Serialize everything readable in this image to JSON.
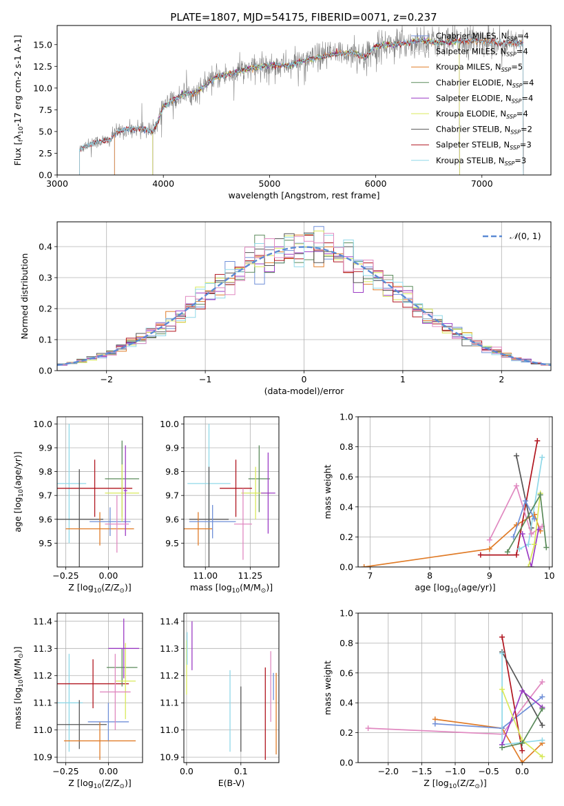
{
  "figure": {
    "title": "PLATE=1807, MJD=54175, FIBERID=0071, z=0.237"
  },
  "colors": {
    "Chabrier MILES": "#6f8fd8",
    "Salpeter MILES": "#d8d8d8",
    "Kroupa MILES": "#e07b27",
    "Chabrier ELODIE": "#5a8a5a",
    "Salpeter ELODIE": "#9b3bc4",
    "Kroupa ELODIE": "#d8e85a",
    "Chabrier STELIB": "#555555",
    "Salpeter STELIB": "#b0141e",
    "Kroupa STELIB": "#8fd8e8",
    "extra_pink": "#e088c0",
    "gaussian": "#5b8ad4",
    "data": "#808080"
  },
  "chart_data": [
    {
      "id": "spectrum",
      "type": "line",
      "title": "PLATE=1807, MJD=54175, FIBERID=0071, z=0.237",
      "xlabel": "wavelength [Angstrom, rest frame]",
      "ylabel_parts": [
        "Flux [",
        "f",
        "λ",
        "10",
        "-17",
        " erg cm",
        "-2",
        " s",
        "-1",
        " A",
        "-1",
        "]"
      ],
      "xlim": [
        3000,
        7650
      ],
      "ylim": [
        0,
        17.2
      ],
      "xticks": [
        3000,
        4000,
        5000,
        6000,
        7000
      ],
      "yticks": [
        0.0,
        2.5,
        5.0,
        7.5,
        10.0,
        12.5,
        15.0
      ],
      "ytick_labels": [
        "0.0",
        "2.5",
        "5.0",
        "7.5",
        "10.0",
        "12.5",
        "15.0"
      ],
      "continuum": {
        "x": [
          3210,
          3250,
          3400,
          3500,
          3540,
          3600,
          3700,
          3800,
          3900,
          3950,
          4000,
          4100,
          4200,
          4300,
          4400,
          4500,
          4600,
          4700,
          4800,
          4900,
          5000,
          5100,
          5200,
          5300,
          5400,
          5500,
          5600,
          5700,
          5800,
          5900,
          6000,
          6100,
          6200,
          6300,
          6400,
          6500,
          6600,
          6700,
          6800,
          6900,
          7000,
          7100,
          7200,
          7300,
          7390
        ],
        "y": [
          2.8,
          3.3,
          3.9,
          4.0,
          4.8,
          5.1,
          5.3,
          5.4,
          5.0,
          6.2,
          7.9,
          8.6,
          9.4,
          9.4,
          10.4,
          11.3,
          11.5,
          11.9,
          12.2,
          12.4,
          12.6,
          12.6,
          12.6,
          13.1,
          13.3,
          13.6,
          13.9,
          14.0,
          14.1,
          13.5,
          14.8,
          15.0,
          15.1,
          15.2,
          15.5,
          15.4,
          15.2,
          15.3,
          15.4,
          15.5,
          15.4,
          15.3,
          15.1,
          15.2,
          15.0
        ]
      },
      "legend": [
        {
          "name": "Chabrier MILES",
          "n": "4"
        },
        {
          "name": "Salpeter MILES",
          "n": "4"
        },
        {
          "name": "Kroupa MILES",
          "n": "5"
        },
        {
          "name": "Chabrier ELODIE",
          "n": "4"
        },
        {
          "name": "Salpeter ELODIE",
          "n": "4"
        },
        {
          "name": "Kroupa ELODIE",
          "n": "4"
        },
        {
          "name": "Chabrier STELIB",
          "n": "2"
        },
        {
          "name": "Salpeter STELIB",
          "n": "3"
        },
        {
          "name": "Kroupa STELIB",
          "n": "3"
        }
      ],
      "legend_label_nssp": ", N",
      "legend_sub": "SSP",
      "legend_eq": "=",
      "model_start": {
        "Chabrier MILES": 3540,
        "Salpeter MILES": 3540,
        "Kroupa MILES": 3540,
        "Chabrier ELODIE": 3900,
        "Salpeter ELODIE": 3900,
        "Kroupa ELODIE": 3900,
        "Chabrier STELIB": 3210,
        "Salpeter STELIB": 3210,
        "Kroupa STELIB": 3210
      },
      "model_end": {
        "Chabrier MILES": 7390,
        "Salpeter MILES": 7390,
        "Kroupa MILES": 7390,
        "Chabrier ELODIE": 6790,
        "Salpeter ELODIE": 6790,
        "Kroupa ELODIE": 6790,
        "Chabrier STELIB": 7390,
        "Salpeter STELIB": 7390,
        "Kroupa STELIB": 7390
      }
    },
    {
      "id": "residuals",
      "type": "bar",
      "xlabel": "(data-model)/error",
      "ylabel": "Normed distribution",
      "xlim": [
        -2.5,
        2.5
      ],
      "ylim": [
        0,
        0.48
      ],
      "xticks": [
        -2,
        -1,
        0,
        1,
        2
      ],
      "xtick_labels": [
        "−2",
        "−1",
        "0",
        "1",
        "2"
      ],
      "yticks": [
        0.0,
        0.1,
        0.2,
        0.3,
        0.4
      ],
      "ytick_labels": [
        "0.0",
        "0.1",
        "0.2",
        "0.3",
        "0.4"
      ],
      "bin_width": 0.1,
      "series_count": 9,
      "grid": true,
      "legend": {
        "label_prefix": "𝒩",
        "label_args": "(0, 1)",
        "placement": "top-right"
      }
    },
    {
      "id": "age_vs_Z",
      "type": "scatter",
      "xlabel_parts": [
        "Z [log",
        "10",
        "(Z/Z",
        "⊙",
        ")]"
      ],
      "ylabel_parts": [
        "age  [log",
        "10",
        "(age/yr)]"
      ],
      "xlim": [
        -0.3,
        0.2
      ],
      "ylim": [
        9.4,
        10.03
      ],
      "xticks": [
        -0.25,
        0.0
      ],
      "xtick_labels": [
        "−0.25",
        "0.00"
      ],
      "yticks": [
        9.5,
        9.6,
        9.7,
        9.8,
        9.9,
        10.0
      ],
      "ytick_labels": [
        "9.5",
        "9.6",
        "9.7",
        "9.8",
        "9.9",
        "10.0"
      ],
      "points": [
        {
          "series": "Kroupa STELIB",
          "x": -0.23,
          "y": 9.75,
          "xerr": 0.1,
          "yerr": 0.25
        },
        {
          "series": "Salpeter STELIB",
          "x": -0.08,
          "y": 9.73,
          "xerr": 0.22,
          "yerr": 0.12
        },
        {
          "series": "Chabrier STELIB",
          "x": -0.17,
          "y": 9.6,
          "xerr": 0.14,
          "yerr": 0.21
        },
        {
          "series": "Kroupa MILES",
          "x": -0.05,
          "y": 9.56,
          "xerr": 0.2,
          "yerr": 0.07
        },
        {
          "series": "Chabrier MILES",
          "x": 0.01,
          "y": 9.59,
          "xerr": 0.12,
          "yerr": 0.06
        },
        {
          "series": "Chabrier ELODIE",
          "x": 0.08,
          "y": 9.77,
          "xerr": 0.1,
          "yerr": 0.16
        },
        {
          "series": "Kroupa ELODIE",
          "x": 0.08,
          "y": 9.71,
          "xerr": 0.1,
          "yerr": 0.12
        },
        {
          "series": "Salpeter ELODIE",
          "x": 0.1,
          "y": 9.72,
          "xerr": 0.01,
          "yerr": 0.19
        },
        {
          "series": "extra_pink",
          "x": 0.05,
          "y": 9.58,
          "xerr": 0.07,
          "yerr": 0.12
        }
      ]
    },
    {
      "id": "age_vs_mass",
      "type": "scatter",
      "xlabel_parts": [
        "mass [log",
        "10",
        "(M/M",
        "⊙",
        ")]"
      ],
      "xlim": [
        10.88,
        11.41
      ],
      "ylim": [
        9.4,
        10.03
      ],
      "xticks": [
        11.0,
        11.25
      ],
      "xtick_labels": [
        "11.00",
        "11.25"
      ],
      "yticks": [
        9.5,
        9.6,
        9.7,
        9.8,
        9.9,
        10.0
      ],
      "ytick_labels": [
        "9.5",
        "9.6",
        "9.7",
        "9.8",
        "9.9",
        "10.0"
      ],
      "points": [
        {
          "series": "Kroupa STELIB",
          "x": 11.02,
          "y": 9.75,
          "xerr": 0.12,
          "yerr": 0.25
        },
        {
          "series": "Salpeter STELIB",
          "x": 11.17,
          "y": 9.73,
          "xerr": 0.09,
          "yerr": 0.12
        },
        {
          "series": "Chabrier STELIB",
          "x": 11.02,
          "y": 9.6,
          "xerr": 0.11,
          "yerr": 0.22
        },
        {
          "series": "Kroupa MILES",
          "x": 10.96,
          "y": 9.56,
          "xerr": 0.08,
          "yerr": 0.07
        },
        {
          "series": "Chabrier MILES",
          "x": 11.04,
          "y": 9.59,
          "xerr": 0.13,
          "yerr": 0.07
        },
        {
          "series": "Chabrier ELODIE",
          "x": 11.3,
          "y": 9.77,
          "xerr": 0.06,
          "yerr": 0.14
        },
        {
          "series": "Kroupa ELODIE",
          "x": 11.28,
          "y": 9.71,
          "xerr": 0.08,
          "yerr": 0.11
        },
        {
          "series": "Salpeter ELODIE",
          "x": 11.35,
          "y": 9.71,
          "xerr": 0.04,
          "yerr": 0.17
        },
        {
          "series": "extra_pink",
          "x": 11.21,
          "y": 9.58,
          "xerr": 0.05,
          "yerr": 0.15
        }
      ]
    },
    {
      "id": "massweight_vs_age",
      "type": "line",
      "xlabel_parts": [
        "age  [log",
        "10",
        "(age/yr)]"
      ],
      "ylabel": "mass weight",
      "xlim": [
        6.8,
        10.05
      ],
      "ylim": [
        0,
        1.0
      ],
      "xticks": [
        7,
        8,
        9,
        10
      ],
      "xtick_labels": [
        "7",
        "8",
        "9",
        "10"
      ],
      "yticks": [
        0.0,
        0.2,
        0.4,
        0.6,
        0.8,
        1.0
      ],
      "ytick_labels": [
        "0.0",
        "0.2",
        "0.4",
        "0.6",
        "0.8",
        "1.0"
      ],
      "series": [
        {
          "name": "Kroupa MILES",
          "x": [
            6.9,
            9.0,
            9.45,
            9.75,
            9.85
          ],
          "y": [
            0.0,
            0.12,
            0.28,
            0.35,
            0.24
          ]
        },
        {
          "name": "Salpeter STELIB",
          "x": [
            8.85,
            9.45,
            9.8
          ],
          "y": [
            0.08,
            0.08,
            0.84
          ]
        },
        {
          "name": "Chabrier STELIB",
          "x": [
            9.45,
            9.7
          ],
          "y": [
            0.74,
            0.26
          ]
        },
        {
          "name": "Kroupa STELIB",
          "x": [
            9.5,
            9.65,
            9.88
          ],
          "y": [
            0.12,
            0.15,
            0.73
          ]
        },
        {
          "name": "extra_pink",
          "x": [
            9.0,
            9.45,
            9.7,
            9.88
          ],
          "y": [
            0.18,
            0.54,
            0.22,
            0.27
          ]
        },
        {
          "name": "Salpeter ELODIE",
          "x": [
            9.55,
            9.7,
            9.82
          ],
          "y": [
            0.22,
            0.0,
            0.25
          ]
        },
        {
          "name": "Kroupa ELODIE",
          "x": [
            9.65,
            9.75,
            9.85
          ],
          "y": [
            0.0,
            0.15,
            0.49
          ]
        },
        {
          "name": "Chabrier ELODIE",
          "x": [
            9.3,
            9.85,
            9.95
          ],
          "y": [
            0.1,
            0.48,
            0.13
          ]
        },
        {
          "name": "Chabrier MILES",
          "x": [
            9.4,
            9.6,
            9.75
          ],
          "y": [
            0.2,
            0.44,
            0.32
          ]
        }
      ]
    },
    {
      "id": "mass_vs_Z",
      "type": "scatter",
      "xlabel_parts": [
        "Z [log",
        "10",
        "(Z/Z",
        "⊙",
        ")]"
      ],
      "ylabel_parts": [
        "mass [log",
        "10",
        "(M/M",
        "⊙",
        ")]"
      ],
      "xlim": [
        -0.3,
        0.2
      ],
      "ylim": [
        10.88,
        11.43
      ],
      "xticks": [
        -0.25,
        0.0
      ],
      "xtick_labels": [
        "−0.25",
        "0.00"
      ],
      "yticks": [
        10.9,
        11.0,
        11.1,
        11.2,
        11.3,
        11.4
      ],
      "ytick_labels": [
        "10.9",
        "11.0",
        "11.1",
        "11.2",
        "11.3",
        "11.4"
      ],
      "points": [
        {
          "series": "Kroupa STELIB",
          "x": -0.23,
          "y": 11.1,
          "xerr": 0.08,
          "yerr": 0.18
        },
        {
          "series": "Salpeter STELIB",
          "x": -0.09,
          "y": 11.17,
          "xerr": 0.21,
          "yerr": 0.09
        },
        {
          "series": "Chabrier STELIB",
          "x": -0.17,
          "y": 11.02,
          "xerr": 0.16,
          "yerr": 0.09
        },
        {
          "series": "Kroupa MILES",
          "x": -0.05,
          "y": 10.96,
          "xerr": 0.21,
          "yerr": 0.07
        },
        {
          "series": "Chabrier MILES",
          "x": 0.0,
          "y": 11.03,
          "xerr": 0.12,
          "yerr": 0.07
        },
        {
          "series": "Chabrier ELODIE",
          "x": 0.08,
          "y": 11.23,
          "xerr": 0.09,
          "yerr": 0.07
        },
        {
          "series": "Kroupa ELODIE",
          "x": 0.1,
          "y": 11.18,
          "xerr": 0.06,
          "yerr": 0.14
        },
        {
          "series": "Salpeter ELODIE",
          "x": 0.09,
          "y": 11.3,
          "xerr": 0.09,
          "yerr": 0.11
        },
        {
          "series": "extra_pink",
          "x": 0.04,
          "y": 11.14,
          "xerr": 0.09,
          "yerr": 0.14
        }
      ]
    },
    {
      "id": "mass_vs_EBV",
      "type": "scatter",
      "xlabel": "E(B-V)",
      "xlim": [
        -0.005,
        0.17
      ],
      "ylim": [
        10.88,
        11.43
      ],
      "xticks": [
        0.0,
        0.1
      ],
      "xtick_labels": [
        "0.0",
        "0.1"
      ],
      "yticks": [
        10.9,
        11.0,
        11.1,
        11.2,
        11.3,
        11.4
      ],
      "ytick_labels": [
        "10.9",
        "11.0",
        "11.1",
        "11.2",
        "11.3",
        "11.4"
      ],
      "points": [
        {
          "series": "Kroupa ELODIE",
          "x": 0.0,
          "y": 11.23,
          "yerr": 0.1
        },
        {
          "series": "Kroupa STELIB",
          "x": 0.001,
          "y": 11.3,
          "yerr": 0.06
        },
        {
          "series": "Salpeter ELODIE",
          "x": 0.01,
          "y": 11.31,
          "yerr": 0.09
        },
        {
          "series": "Kroupa STELIB",
          "x": 0.08,
          "y": 11.07,
          "yerr": 0.15
        },
        {
          "series": "Chabrier STELIB",
          "x": 0.1,
          "y": 11.04,
          "yerr": 0.12
        },
        {
          "series": "Salpeter STELIB",
          "x": 0.145,
          "y": 11.06,
          "yerr": 0.17
        },
        {
          "series": "extra_pink",
          "x": 0.155,
          "y": 11.16,
          "yerr": 0.13
        },
        {
          "series": "Kroupa MILES",
          "x": 0.165,
          "y": 11.06,
          "yerr": 0.15
        },
        {
          "series": "Chabrier MILES",
          "x": 0.16,
          "y": 11.16,
          "yerr": 0.05
        }
      ]
    },
    {
      "id": "massweight_vs_Z",
      "type": "line",
      "xlabel_parts": [
        "Z [log",
        "10",
        "(Z/Z",
        "⊙",
        ")]"
      ],
      "ylabel": "mass weight",
      "xlim": [
        -2.45,
        0.45
      ],
      "ylim": [
        0,
        1.0
      ],
      "xticks": [
        -2.0,
        -1.5,
        -1.0,
        -0.5,
        0.0
      ],
      "xtick_labels": [
        "−2.0",
        "−1.5",
        "−1.0",
        "−0.5",
        "0.0"
      ],
      "yticks": [
        0.0,
        0.2,
        0.4,
        0.6,
        0.8,
        1.0
      ],
      "ytick_labels": [
        "0.0",
        "0.2",
        "0.4",
        "0.6",
        "0.8",
        "1.0"
      ],
      "series": [
        {
          "name": "extra_pink",
          "x": [
            -2.3,
            -0.3,
            0.3
          ],
          "y": [
            0.23,
            0.19,
            0.54
          ]
        },
        {
          "name": "Kroupa MILES",
          "x": [
            -1.3,
            -0.3,
            0.0,
            0.3
          ],
          "y": [
            0.29,
            0.23,
            0.0,
            0.13
          ]
        },
        {
          "name": "Chabrier MILES",
          "x": [
            -1.3,
            -0.3,
            0.3
          ],
          "y": [
            0.26,
            0.23,
            0.44
          ]
        },
        {
          "name": "Salpeter STELIB",
          "x": [
            -0.3,
            0.0
          ],
          "y": [
            0.84,
            0.08
          ]
        },
        {
          "name": "Chabrier STELIB",
          "x": [
            -0.3,
            0.3
          ],
          "y": [
            0.74,
            0.25
          ]
        },
        {
          "name": "Kroupa STELIB",
          "x": [
            -0.3,
            -0.3,
            0.3
          ],
          "y": [
            0.73,
            0.12,
            0.15
          ]
        },
        {
          "name": "Salpeter ELODIE",
          "x": [
            -0.3,
            0.0,
            0.3
          ],
          "y": [
            0.12,
            0.48,
            0.37
          ]
        },
        {
          "name": "Kroupa ELODIE",
          "x": [
            -0.3,
            0.0,
            0.3
          ],
          "y": [
            0.49,
            0.15,
            0.04
          ]
        },
        {
          "name": "Chabrier ELODIE",
          "x": [
            -0.3,
            0.0,
            0.3
          ],
          "y": [
            0.1,
            0.13,
            0.36
          ]
        }
      ]
    }
  ]
}
